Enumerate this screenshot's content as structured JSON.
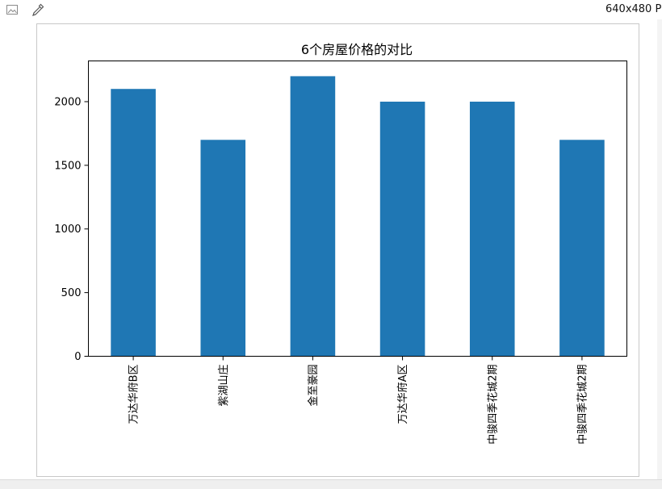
{
  "viewer": {
    "size_label": "640x480 P",
    "icons": [
      "image-icon",
      "eyedropper-icon"
    ]
  },
  "chart_data": {
    "type": "bar",
    "title": "6个房屋价格的对比",
    "categories": [
      "万达华府B区",
      "紫湖山庄",
      "金至豪园",
      "万达华府A区",
      "中骏四季花城2期",
      "中骏四季花城2期"
    ],
    "values": [
      2100,
      1700,
      2200,
      2000,
      2000,
      1700
    ],
    "ylim": [
      0,
      2320
    ],
    "yticks": [
      0,
      500,
      1000,
      1500,
      2000
    ],
    "xlabel": "",
    "ylabel": "",
    "bar_color": "#1f77b4",
    "grid": false,
    "legend": "none"
  }
}
